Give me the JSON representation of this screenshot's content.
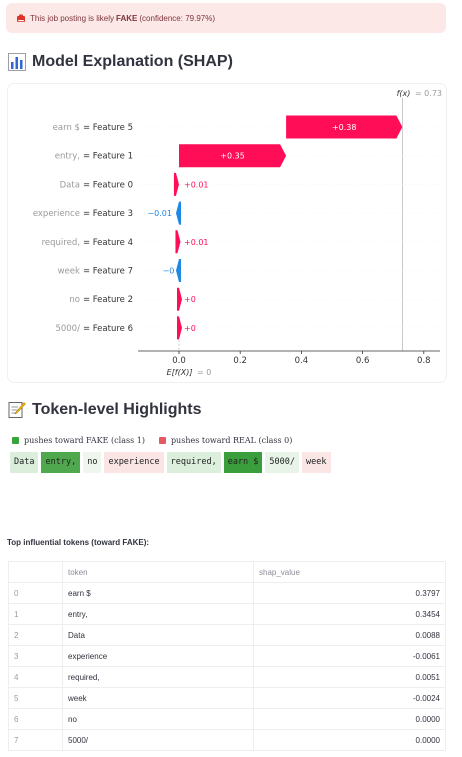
{
  "alert": {
    "prefix": "This job posting is likely",
    "verdict": "FAKE",
    "suffix": "(confidence: 79.97%)"
  },
  "shap_section": {
    "title": "Model Explanation (SHAP)",
    "icon": "bar-chart-icon"
  },
  "chart_data": {
    "type": "bar",
    "subtype": "shap-waterfall",
    "fx_label": "f(x)",
    "fx_value": "= 0.73",
    "fx": 0.73,
    "base_label": "E[f(X)]",
    "base_value": "= 0",
    "base": 0,
    "xlim": [
      -0.13,
      0.86
    ],
    "xticks": [
      0.0,
      0.2,
      0.4,
      0.6,
      0.8
    ],
    "xtick_labels": [
      "0.0",
      "0.2",
      "0.4",
      "0.6",
      "0.8"
    ],
    "rows": [
      {
        "value_label": "earn $",
        "feature": "= Feature 5",
        "start": 0.35,
        "end": 0.73,
        "shap_label": "+0.38"
      },
      {
        "value_label": "entry,",
        "feature": "= Feature 1",
        "start": 0.0,
        "end": 0.35,
        "shap_label": "+0.35"
      },
      {
        "value_label": "Data",
        "feature": "= Feature 0",
        "start": -0.01,
        "end": 0.0,
        "shap_label": "+0.01"
      },
      {
        "value_label": "experience",
        "feature": "= Feature 3",
        "start": -0.01,
        "end": 0.0,
        "shap_label": "−0.01"
      },
      {
        "value_label": "required,",
        "feature": "= Feature 4",
        "start": -0.005,
        "end": 0.0,
        "shap_label": "+0.01"
      },
      {
        "value_label": "week",
        "feature": "= Feature 7",
        "start": -0.002,
        "end": 0.0,
        "shap_label": "−0"
      },
      {
        "value_label": "no",
        "feature": "= Feature 2",
        "start": 0.0,
        "end": 0.0,
        "shap_label": "+0"
      },
      {
        "value_label": "5000/",
        "feature": "= Feature 6",
        "start": 0.0,
        "end": 0.0,
        "shap_label": "+0"
      }
    ],
    "colors": {
      "positive": "#ff0d57",
      "negative": "#1e88e5"
    }
  },
  "token_section": {
    "title": "Token-level Highlights",
    "icon": "memo-icon"
  },
  "legend": {
    "fake_label": "pushes toward FAKE (class 1)",
    "fake_color": "#3aa43c",
    "real_label": "pushes toward REAL (class 0)",
    "real_color": "#e35a62"
  },
  "tokens": [
    {
      "text": "Data",
      "bg": "#dbeedb"
    },
    {
      "text": "entry,",
      "bg": "#4fa84e"
    },
    {
      "text": "no",
      "bg": "#eef6ee"
    },
    {
      "text": "experience",
      "bg": "#fbe4e4"
    },
    {
      "text": "required,",
      "bg": "#dcefdc"
    },
    {
      "text": "earn $",
      "bg": "#3b9e3c"
    },
    {
      "text": "5000/",
      "bg": "#e8f4e8"
    },
    {
      "text": "week",
      "bg": "#fbe6e6"
    }
  ],
  "table": {
    "title": "Top influential tokens (toward FAKE):",
    "columns": [
      "",
      "token",
      "shap_value"
    ],
    "rows": [
      [
        "0",
        "earn $",
        "0.3797"
      ],
      [
        "1",
        "entry,",
        "0.3454"
      ],
      [
        "2",
        "Data",
        "0.0088"
      ],
      [
        "3",
        "experience",
        "-0.0061"
      ],
      [
        "4",
        "required,",
        "0.0051"
      ],
      [
        "5",
        "week",
        "-0.0024"
      ],
      [
        "6",
        "no",
        "0.0000"
      ],
      [
        "7",
        "5000/",
        "0.0000"
      ]
    ]
  }
}
